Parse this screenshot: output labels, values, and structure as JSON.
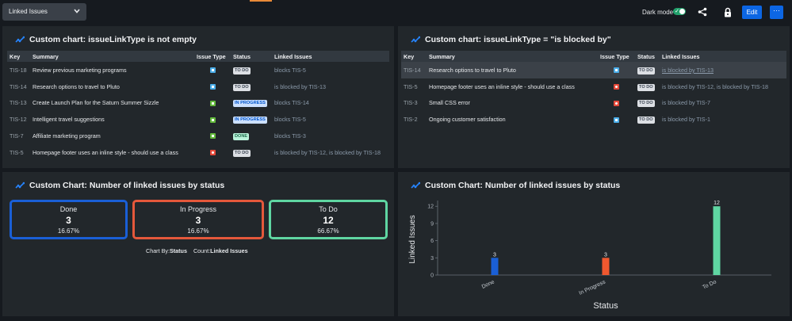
{
  "topbar": {
    "dashboard_selector": "Linked Issues",
    "dark_mode_label": "Dark mode",
    "edit_label": "Edit",
    "more_label": "···"
  },
  "colors": {
    "accent": "#0c66e4",
    "done": "#1a6ad8",
    "in_progress": "#e5583b",
    "todo": "#5fd6a2",
    "panel": "#22272b",
    "background": "#161a1f"
  },
  "panel1": {
    "title": "Custom chart: issueLinkType is not empty",
    "columns": [
      "Key",
      "Summary",
      "Issue Type",
      "Status",
      "Linked Issues"
    ],
    "rows": [
      {
        "key": "TIS-18",
        "summary": "Review previous marketing programs",
        "type_icon": "subtask-icon",
        "status": "TO DO",
        "linked": "blocks TIS-5"
      },
      {
        "key": "TIS-14",
        "summary": "Research options to travel to Pluto",
        "type_icon": "task-icon",
        "status": "TO DO",
        "linked": "is blocked by TIS-13"
      },
      {
        "key": "TIS-13",
        "summary": "Create Launch Plan for the Saturn Summer Sizzle",
        "type_icon": "story-icon",
        "status": "IN PROGRESS",
        "linked": "blocks TIS-14"
      },
      {
        "key": "TIS-12",
        "summary": "Intelligent travel suggestions",
        "type_icon": "story-icon",
        "status": "IN PROGRESS",
        "linked": "blocks TIS-5"
      },
      {
        "key": "TIS-7",
        "summary": "Affiliate marketing program",
        "type_icon": "story-icon",
        "status": "DONE",
        "linked": "blocks TIS-3"
      },
      {
        "key": "TIS-5",
        "summary": "Homepage footer uses an inline style - should use a class",
        "type_icon": "bug-icon",
        "status": "TO DO",
        "linked": "is blocked by TIS-12, is blocked by TIS-18"
      }
    ]
  },
  "panel2": {
    "title": "Custom chart: issueLinkType = \"is blocked by\"",
    "columns": [
      "Key",
      "Summary",
      "Issue Type",
      "Status",
      "Linked Issues"
    ],
    "rows": [
      {
        "key": "TIS-14",
        "summary": "Research options to travel to Pluto",
        "type_icon": "task-icon",
        "status": "TO DO",
        "linked": "is blocked by TIS-13"
      },
      {
        "key": "TIS-5",
        "summary": "Homepage footer uses an inline style - should use a class",
        "type_icon": "bug-icon",
        "status": "TO DO",
        "linked": "is blocked by TIS-12, is blocked by TIS-18"
      },
      {
        "key": "TIS-3",
        "summary": "Small CSS error",
        "type_icon": "bug-icon",
        "status": "TO DO",
        "linked": "is blocked by TIS-7"
      },
      {
        "key": "TIS-2",
        "summary": "Ongoing customer satisfaction",
        "type_icon": "task-icon",
        "status": "TO DO",
        "linked": "is blocked by TIS-1"
      }
    ]
  },
  "panel3": {
    "title": "Custom Chart: Number of linked issues by status",
    "boxes": [
      {
        "label": "Done",
        "count": "3",
        "percent": "16.67%"
      },
      {
        "label": "In Progress",
        "count": "3",
        "percent": "16.67%"
      },
      {
        "label": "To Do",
        "count": "12",
        "percent": "66.67%"
      }
    ],
    "chart_by_label": "Chart By:",
    "chart_by_value": "Status",
    "count_label": "Count:",
    "count_value": "Linked Issues"
  },
  "panel4": {
    "title": "Custom Chart: Number of linked issues by status"
  },
  "chart_data": {
    "type": "bar",
    "categories": [
      "Done",
      "In Progress",
      "To Do"
    ],
    "values": [
      3,
      3,
      12
    ],
    "colors": [
      "#1a5fd6",
      "#f0582f",
      "#5fd6a2"
    ],
    "xlabel": "Status",
    "ylabel": "Linked Issues",
    "ylim": [
      0,
      13
    ],
    "yticks": [
      0,
      3,
      6,
      9,
      12
    ],
    "grid": false,
    "legend": "none"
  }
}
